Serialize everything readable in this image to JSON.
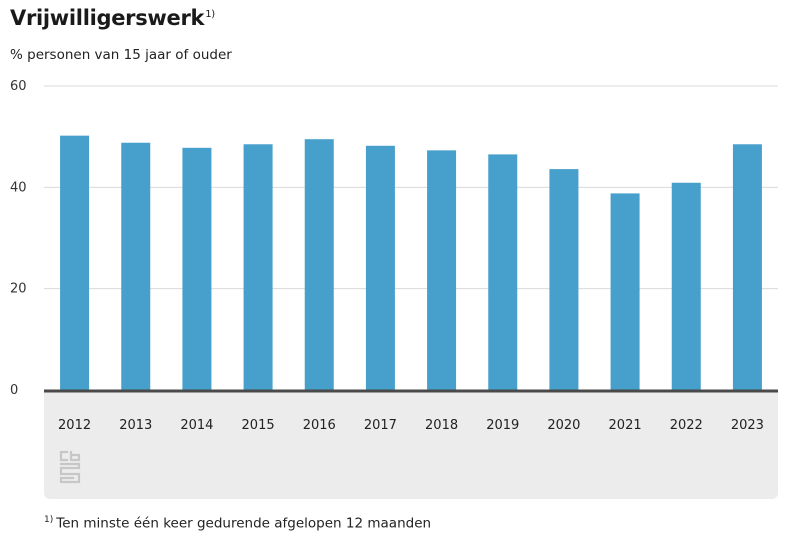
{
  "header": {
    "title": "Vrijwilligerswerk",
    "title_marker": "1)",
    "subtitle": "% personen van 15 jaar of ouder"
  },
  "footnote": {
    "marker": "1)",
    "text": "Ten minste één keer gedurende afgelopen 12 maanden"
  },
  "logo": {
    "icon": "cbs-logo-icon",
    "color": "#c7c7c7"
  },
  "colors": {
    "bar": "#479fcb",
    "baseline": "#4a4a4a",
    "grid": "#d9d9d9",
    "band": "#ececec"
  },
  "chart_data": {
    "type": "bar",
    "title": "Vrijwilligerswerk",
    "subtitle": "% personen van 15 jaar of ouder",
    "categories": [
      "2012",
      "2013",
      "2014",
      "2015",
      "2016",
      "2017",
      "2018",
      "2019",
      "2020",
      "2021",
      "2022",
      "2023"
    ],
    "values": [
      50.2,
      48.8,
      47.8,
      48.5,
      49.5,
      48.2,
      47.3,
      46.5,
      43.6,
      38.8,
      40.9,
      48.5
    ],
    "ylim": [
      0,
      60
    ],
    "yticks": [
      0,
      20,
      40,
      60
    ],
    "grid": true,
    "legend": "none"
  }
}
